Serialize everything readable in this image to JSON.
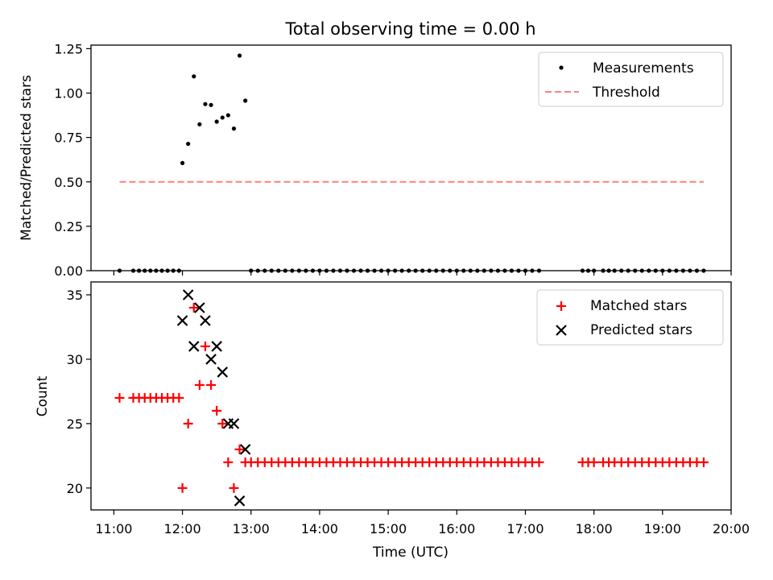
{
  "figure": {
    "title": "Total observing time = 0.00 h"
  },
  "colors": {
    "measurement": "#000000",
    "threshold": "#ff7f7f",
    "matched": "#ff0000",
    "predicted": "#000000"
  },
  "chart_data": [
    {
      "type": "scatter",
      "title": "Total observing time = 0.00 h",
      "xlabel": "",
      "ylabel": "Matched/Predicted stars",
      "xlim": [
        "10:40",
        "20:00"
      ],
      "ylim": [
        0.0,
        1.27
      ],
      "yticks": [
        "0.00",
        "0.25",
        "0.50",
        "0.75",
        "1.00",
        "1.25"
      ],
      "legend": {
        "placement": "top-right",
        "entries": [
          "Measurements",
          "Threshold"
        ]
      },
      "series": [
        {
          "name": "Measurements",
          "marker": "dot",
          "points": [
            [
              "11:05",
              0.0
            ],
            [
              "11:17",
              0.0
            ],
            [
              "11:22",
              0.0
            ],
            [
              "11:27",
              0.0
            ],
            [
              "11:32",
              0.0
            ],
            [
              "11:37",
              0.0
            ],
            [
              "11:42",
              0.0
            ],
            [
              "11:47",
              0.0
            ],
            [
              "11:52",
              0.0
            ],
            [
              "11:57",
              0.0
            ],
            [
              "12:00",
              0.606
            ],
            [
              "12:05",
              0.714
            ],
            [
              "12:10",
              1.094
            ],
            [
              "12:15",
              0.824
            ],
            [
              "12:20",
              0.938
            ],
            [
              "12:25",
              0.933
            ],
            [
              "12:30",
              0.839
            ],
            [
              "12:35",
              0.862
            ],
            [
              "12:40",
              0.875
            ],
            [
              "12:45",
              0.8
            ],
            [
              "12:50",
              1.211
            ],
            [
              "12:55",
              0.957
            ],
            [
              "13:00",
              0.0
            ],
            [
              "13:06",
              0.0
            ],
            [
              "13:12",
              0.0
            ],
            [
              "13:18",
              0.0
            ],
            [
              "13:24",
              0.0
            ],
            [
              "13:30",
              0.0
            ],
            [
              "13:36",
              0.0
            ],
            [
              "13:42",
              0.0
            ],
            [
              "13:48",
              0.0
            ],
            [
              "13:54",
              0.0
            ],
            [
              "14:00",
              0.0
            ],
            [
              "14:06",
              0.0
            ],
            [
              "14:12",
              0.0
            ],
            [
              "14:18",
              0.0
            ],
            [
              "14:24",
              0.0
            ],
            [
              "14:30",
              0.0
            ],
            [
              "14:36",
              0.0
            ],
            [
              "14:42",
              0.0
            ],
            [
              "14:48",
              0.0
            ],
            [
              "14:54",
              0.0
            ],
            [
              "15:00",
              0.0
            ],
            [
              "15:06",
              0.0
            ],
            [
              "15:12",
              0.0
            ],
            [
              "15:18",
              0.0
            ],
            [
              "15:24",
              0.0
            ],
            [
              "15:30",
              0.0
            ],
            [
              "15:36",
              0.0
            ],
            [
              "15:42",
              0.0
            ],
            [
              "15:48",
              0.0
            ],
            [
              "15:54",
              0.0
            ],
            [
              "16:00",
              0.0
            ],
            [
              "16:06",
              0.0
            ],
            [
              "16:12",
              0.0
            ],
            [
              "16:18",
              0.0
            ],
            [
              "16:24",
              0.0
            ],
            [
              "16:30",
              0.0
            ],
            [
              "16:36",
              0.0
            ],
            [
              "16:42",
              0.0
            ],
            [
              "16:48",
              0.0
            ],
            [
              "16:54",
              0.0
            ],
            [
              "17:00",
              0.0
            ],
            [
              "17:06",
              0.0
            ],
            [
              "17:12",
              0.0
            ],
            [
              "17:50",
              0.0
            ],
            [
              "17:55",
              0.0
            ],
            [
              "18:00",
              0.0
            ],
            [
              "18:08",
              0.0
            ],
            [
              "18:13",
              0.0
            ],
            [
              "18:18",
              0.0
            ],
            [
              "18:24",
              0.0
            ],
            [
              "18:30",
              0.0
            ],
            [
              "18:36",
              0.0
            ],
            [
              "18:42",
              0.0
            ],
            [
              "18:48",
              0.0
            ],
            [
              "18:54",
              0.0
            ],
            [
              "19:00",
              0.0
            ],
            [
              "19:06",
              0.0
            ],
            [
              "19:12",
              0.0
            ],
            [
              "19:18",
              0.0
            ],
            [
              "19:24",
              0.0
            ],
            [
              "19:30",
              0.0
            ],
            [
              "19:36",
              0.0
            ]
          ]
        },
        {
          "name": "Threshold",
          "style": "dashed-line",
          "points": [
            [
              "11:05",
              0.5
            ],
            [
              "19:36",
              0.5
            ]
          ]
        }
      ]
    },
    {
      "type": "scatter",
      "title": "",
      "xlabel": "Time (UTC)",
      "ylabel": "Count",
      "xlim": [
        "10:40",
        "20:00"
      ],
      "ylim": [
        18.3,
        36.0
      ],
      "xticks": [
        "11:00",
        "12:00",
        "13:00",
        "14:00",
        "15:00",
        "16:00",
        "17:00",
        "18:00",
        "19:00",
        "20:00"
      ],
      "yticks": [
        "20",
        "25",
        "30",
        "35"
      ],
      "legend": {
        "placement": "top-right",
        "entries": [
          "Matched stars",
          "Predicted stars"
        ]
      },
      "series": [
        {
          "name": "Matched stars",
          "marker": "plus",
          "points": [
            [
              "11:05",
              27
            ],
            [
              "11:17",
              27
            ],
            [
              "11:22",
              27
            ],
            [
              "11:27",
              27
            ],
            [
              "11:32",
              27
            ],
            [
              "11:37",
              27
            ],
            [
              "11:42",
              27
            ],
            [
              "11:47",
              27
            ],
            [
              "11:52",
              27
            ],
            [
              "11:57",
              27
            ],
            [
              "12:00",
              20
            ],
            [
              "12:05",
              25
            ],
            [
              "12:10",
              34
            ],
            [
              "12:15",
              28
            ],
            [
              "12:20",
              31
            ],
            [
              "12:25",
              28
            ],
            [
              "12:30",
              26
            ],
            [
              "12:35",
              25
            ],
            [
              "12:40",
              22
            ],
            [
              "12:45",
              20
            ],
            [
              "12:50",
              23
            ],
            [
              "12:55",
              22
            ],
            [
              "13:00",
              22
            ],
            [
              "13:06",
              22
            ],
            [
              "13:12",
              22
            ],
            [
              "13:18",
              22
            ],
            [
              "13:24",
              22
            ],
            [
              "13:30",
              22
            ],
            [
              "13:36",
              22
            ],
            [
              "13:42",
              22
            ],
            [
              "13:48",
              22
            ],
            [
              "13:54",
              22
            ],
            [
              "14:00",
              22
            ],
            [
              "14:06",
              22
            ],
            [
              "14:12",
              22
            ],
            [
              "14:18",
              22
            ],
            [
              "14:24",
              22
            ],
            [
              "14:30",
              22
            ],
            [
              "14:36",
              22
            ],
            [
              "14:42",
              22
            ],
            [
              "14:48",
              22
            ],
            [
              "14:54",
              22
            ],
            [
              "15:00",
              22
            ],
            [
              "15:06",
              22
            ],
            [
              "15:12",
              22
            ],
            [
              "15:18",
              22
            ],
            [
              "15:24",
              22
            ],
            [
              "15:30",
              22
            ],
            [
              "15:36",
              22
            ],
            [
              "15:42",
              22
            ],
            [
              "15:48",
              22
            ],
            [
              "15:54",
              22
            ],
            [
              "16:00",
              22
            ],
            [
              "16:06",
              22
            ],
            [
              "16:12",
              22
            ],
            [
              "16:18",
              22
            ],
            [
              "16:24",
              22
            ],
            [
              "16:30",
              22
            ],
            [
              "16:36",
              22
            ],
            [
              "16:42",
              22
            ],
            [
              "16:48",
              22
            ],
            [
              "16:54",
              22
            ],
            [
              "17:00",
              22
            ],
            [
              "17:06",
              22
            ],
            [
              "17:12",
              22
            ],
            [
              "17:50",
              22
            ],
            [
              "17:55",
              22
            ],
            [
              "18:00",
              22
            ],
            [
              "18:08",
              22
            ],
            [
              "18:13",
              22
            ],
            [
              "18:18",
              22
            ],
            [
              "18:24",
              22
            ],
            [
              "18:30",
              22
            ],
            [
              "18:36",
              22
            ],
            [
              "18:42",
              22
            ],
            [
              "18:48",
              22
            ],
            [
              "18:54",
              22
            ],
            [
              "19:00",
              22
            ],
            [
              "19:06",
              22
            ],
            [
              "19:12",
              22
            ],
            [
              "19:18",
              22
            ],
            [
              "19:24",
              22
            ],
            [
              "19:30",
              22
            ],
            [
              "19:36",
              22
            ]
          ]
        },
        {
          "name": "Predicted stars",
          "marker": "x",
          "points": [
            [
              "12:00",
              33
            ],
            [
              "12:05",
              35
            ],
            [
              "12:10",
              31
            ],
            [
              "12:15",
              34
            ],
            [
              "12:20",
              33
            ],
            [
              "12:25",
              30
            ],
            [
              "12:30",
              31
            ],
            [
              "12:35",
              29
            ],
            [
              "12:40",
              25
            ],
            [
              "12:45",
              25
            ],
            [
              "12:50",
              19
            ],
            [
              "12:55",
              23
            ]
          ]
        }
      ]
    }
  ]
}
